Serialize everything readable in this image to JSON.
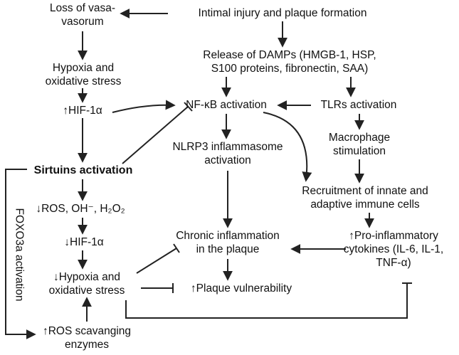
{
  "nodes": {
    "loss_vasa": [
      "Loss of vasa-",
      "vasorum"
    ],
    "intimal": [
      "Intimal injury and plaque formation"
    ],
    "damps": [
      "Release of DAMPs (HMGB-1, HSP,",
      "S100 proteins, fibronectin, SAA)"
    ],
    "hypoxia_top": [
      "Hypoxia and",
      "oxidative stress"
    ],
    "hif_up": [
      "↑HIF-1α"
    ],
    "nfkb": [
      "NF-κB activation"
    ],
    "tlrs": [
      "TLRs activation"
    ],
    "nlrp3": [
      "NLRP3 inflammasome",
      "activation"
    ],
    "macrophage": [
      "Macrophage",
      "stimulation"
    ],
    "sirtuins": [
      "Sirtuins activation"
    ],
    "recruitment": [
      "Recruitment of innate and",
      "adaptive immune cells"
    ],
    "ros_down": [
      "↓ROS, OH⁻, H₂O₂"
    ],
    "hif_down": [
      "↓HIF-1α"
    ],
    "chronic": [
      "Chronic inflammation",
      "in the plaque"
    ],
    "cytokines": [
      "↑Pro-inflammatory",
      "cytokines (IL-6, IL-1,",
      "TNF-α)"
    ],
    "hypoxia_down": [
      "↓Hypoxia and",
      "oxidative stress"
    ],
    "plaque_vuln": [
      "↑Plaque vulnerability"
    ],
    "ros_scav": [
      "↑ROS scavanging",
      "enzymes"
    ]
  },
  "side_label": "FOXO3a activation",
  "colors": {
    "line": "#222222",
    "text": "#111111",
    "background": "#ffffff"
  }
}
